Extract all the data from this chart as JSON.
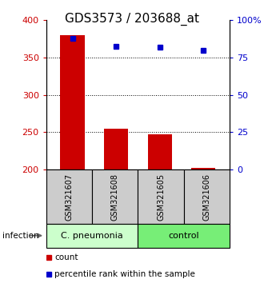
{
  "title": "GDS3573 / 203688_at",
  "samples": [
    "GSM321607",
    "GSM321608",
    "GSM321605",
    "GSM321606"
  ],
  "counts": [
    380,
    255,
    247,
    203
  ],
  "percentiles": [
    87.5,
    82.5,
    81.5,
    79.5
  ],
  "ylim_left": [
    200,
    400
  ],
  "ylim_right": [
    0,
    100
  ],
  "yticks_left": [
    200,
    250,
    300,
    350,
    400
  ],
  "yticks_right": [
    0,
    25,
    50,
    75,
    100
  ],
  "ytick_labels_right": [
    "0",
    "25",
    "50",
    "75",
    "100%"
  ],
  "bar_color": "#cc0000",
  "dot_color": "#0000cc",
  "groups": [
    {
      "label": "C. pneumonia",
      "indices": [
        0,
        1
      ],
      "color": "#ccffcc"
    },
    {
      "label": "control",
      "indices": [
        2,
        3
      ],
      "color": "#77ee77"
    }
  ],
  "infection_label": "infection",
  "legend_items": [
    {
      "color": "#cc0000",
      "label": "count"
    },
    {
      "color": "#0000cc",
      "label": "percentile rank within the sample"
    }
  ],
  "grid_yticks": [
    250,
    300,
    350
  ],
  "sample_box_color": "#cccccc",
  "title_fontsize": 11,
  "tick_fontsize": 8,
  "bar_width": 0.55
}
